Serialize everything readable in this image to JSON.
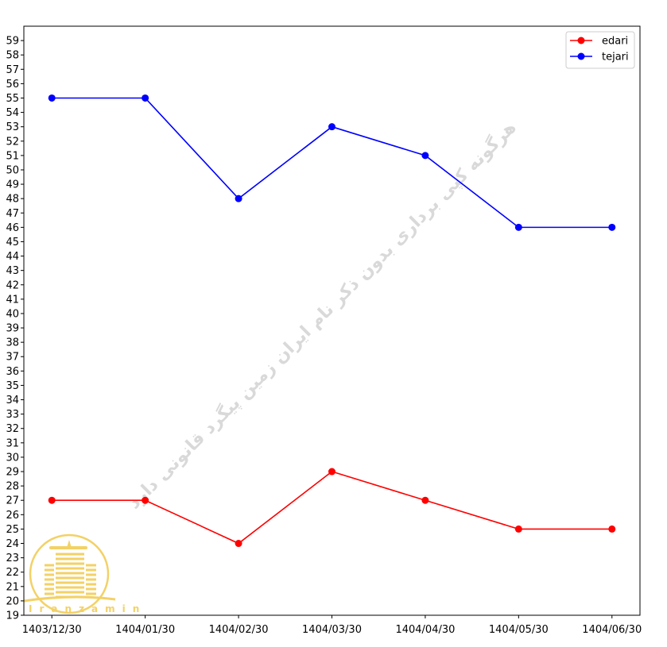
{
  "chart_data": {
    "type": "line",
    "title": "",
    "xlabel": "",
    "ylabel": "",
    "categories": [
      "1403/12/30",
      "1404/01/30",
      "1404/02/30",
      "1404/03/30",
      "1404/04/30",
      "1404/05/30",
      "1404/06/30"
    ],
    "series": [
      {
        "name": "edari",
        "color": "#ff0000",
        "marker": "circle",
        "values": [
          27,
          27,
          24,
          29,
          27,
          25,
          25
        ]
      },
      {
        "name": "tejari",
        "color": "#0000ff",
        "marker": "circle",
        "values": [
          55,
          55,
          48,
          53,
          51,
          46,
          46
        ]
      }
    ],
    "ylim": [
      19,
      60
    ],
    "yticks_step": 1,
    "grid": false,
    "legend_placement": "top-right"
  },
  "watermark": {
    "text": "هرگونه کپی برداری بدون ذکر نام ایران زمین پیگرد قانونی دارد",
    "logo_text": "Iranzamin"
  }
}
